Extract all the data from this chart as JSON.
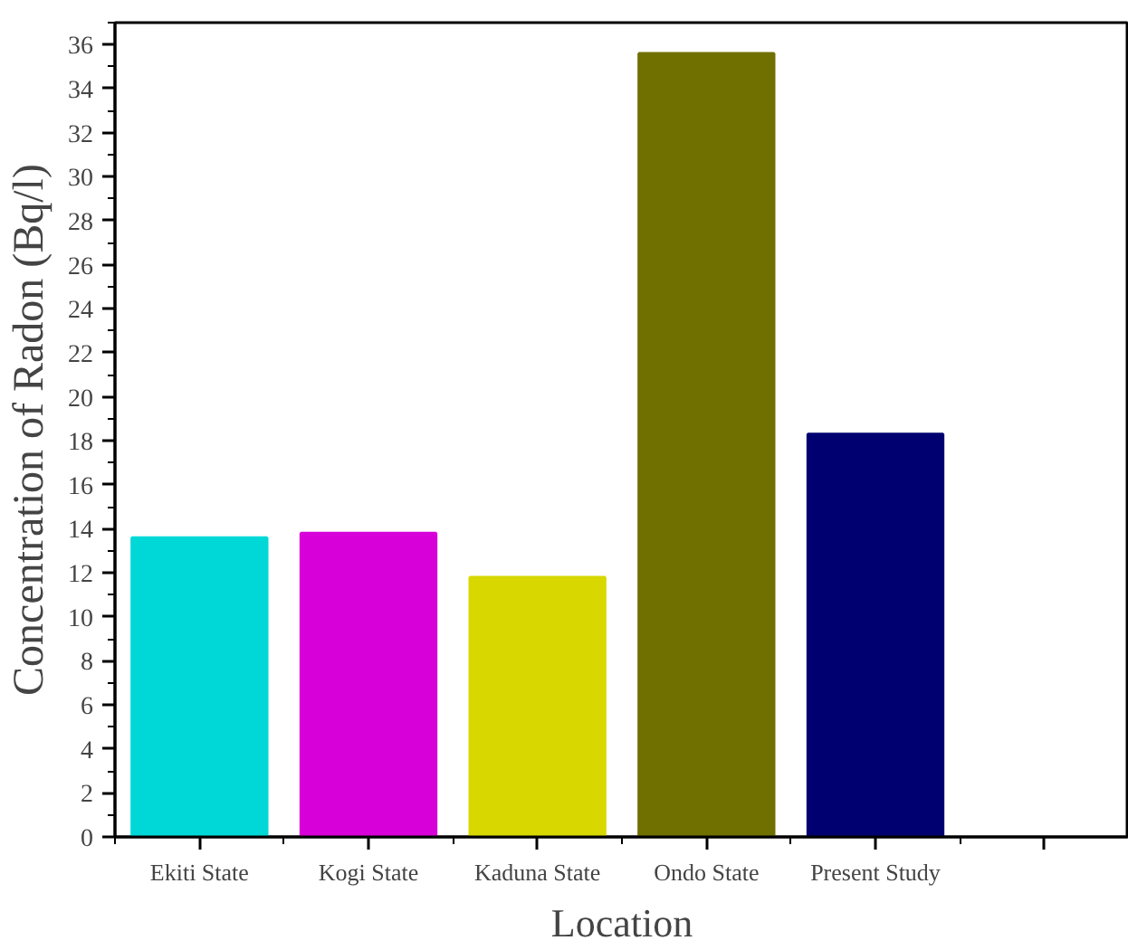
{
  "chart_data": {
    "type": "bar",
    "xlabel": "Location",
    "ylabel": "Concentration of Radon (Bq/l)",
    "categories": [
      "Ekiti State",
      "Kogi State",
      "Kaduna State",
      "Ondo State",
      "Present Study",
      null
    ],
    "values": [
      13.6,
      13.8,
      11.8,
      35.6,
      18.3,
      null
    ],
    "colors": [
      "#00d8d8",
      "#d800d8",
      "#d8d800",
      "#707000",
      "#000070",
      "#ffffff"
    ],
    "ylim": [
      0,
      37
    ],
    "yticks": [
      0,
      2,
      4,
      6,
      8,
      10,
      12,
      14,
      16,
      18,
      20,
      22,
      24,
      26,
      28,
      30,
      32,
      34,
      36
    ],
    "grid": false
  }
}
